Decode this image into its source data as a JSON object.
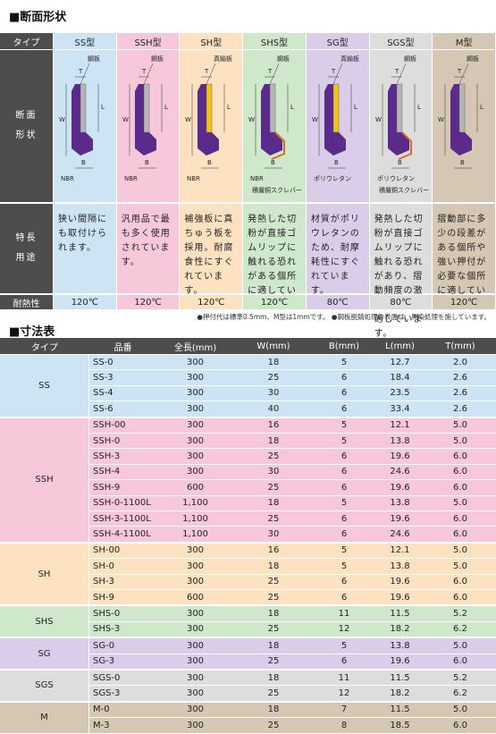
{
  "section_shape": {
    "title": "■断面形状",
    "row_labels": {
      "type": "タイプ",
      "shape": "断面形状",
      "use": "特長用途",
      "heat": "耐熱性"
    },
    "columns": [
      {
        "type": "SS型",
        "plate": "鋼板",
        "dims": [
          "T",
          "L",
          "W",
          "B"
        ],
        "bottom": [
          "NBR"
        ],
        "feature": "狭い間隔にも取付けられます。",
        "heat": "120℃"
      },
      {
        "type": "SSH型",
        "plate": "鋼板",
        "dims": [
          "T",
          "L",
          "W",
          "B"
        ],
        "bottom": [
          "NBR"
        ],
        "feature": "汎用品で最も多く使用されています。",
        "heat": "120℃"
      },
      {
        "type": "SH型",
        "plate": "真鍮板",
        "dims": [
          "T",
          "L",
          "W",
          "B"
        ],
        "bottom": [
          "NBR"
        ],
        "feature": "補強板に真ちゅう板を採用。耐腐食性にすぐれています。",
        "heat": "120℃"
      },
      {
        "type": "SHS型",
        "plate": "鋼板",
        "dims": [
          "T",
          "L",
          "W",
          "B"
        ],
        "bottom": [
          "NBR",
          "積層銅スクレバー"
        ],
        "feature": "発熱した切粉が直接ゴムリップに触れる恐れがある個所に適しています。",
        "heat": "120℃"
      },
      {
        "type": "SG型",
        "plate": "真鍮板",
        "dims": [
          "T",
          "L",
          "W",
          "B"
        ],
        "bottom": [
          "ポリウレタン"
        ],
        "feature": "材質がポリウレタンのため、耐摩耗性にすぐれています。",
        "heat": "80℃"
      },
      {
        "type": "SGS型",
        "plate": "鋼板",
        "dims": [
          "T",
          "L",
          "W",
          "B"
        ],
        "bottom": [
          "ポリウレタン",
          "積層銅スクレバー"
        ],
        "feature": "発熱した切粉が直接ゴムリップに触れる恐れがあり、摺動頻度の激しい個所に適しています。",
        "heat": "80℃"
      },
      {
        "type": "M型",
        "plate": "鋼板",
        "dims": [
          "T",
          "L",
          "W",
          "B"
        ],
        "bottom": [],
        "feature": "摺動部に多少の段差がある個所や強い押付が必要な個所に適しています。",
        "heat": "120℃"
      }
    ]
  },
  "note": "●押付代は標準0.5mm、M型は1mmです。 ●鋼板脱錆処理の表面は、黒染処理を施しています。",
  "section_size": {
    "title": "■寸法表",
    "headers": [
      "タイプ",
      "品番",
      "全長(mm)",
      "W(mm)",
      "B(mm)",
      "L(mm)",
      "T(mm)"
    ],
    "groups": [
      {
        "type": "SS",
        "rows": [
          [
            "SS-0",
            "300",
            "18",
            "5",
            "12.7",
            "2.0"
          ],
          [
            "SS-3",
            "300",
            "25",
            "6",
            "18.4",
            "2.6"
          ],
          [
            "SS-4",
            "300",
            "30",
            "6",
            "23.5",
            "2.6"
          ],
          [
            "SS-6",
            "300",
            "40",
            "6",
            "33.4",
            "2.6"
          ]
        ]
      },
      {
        "type": "SSH",
        "rows": [
          [
            "SSH-00",
            "300",
            "16",
            "5",
            "12.1",
            "5.0"
          ],
          [
            "SSH-0",
            "300",
            "18",
            "5",
            "13.8",
            "5.0"
          ],
          [
            "SSH-3",
            "300",
            "25",
            "6",
            "19.6",
            "6.0"
          ],
          [
            "SSH-4",
            "300",
            "30",
            "6",
            "24.6",
            "6.0"
          ],
          [
            "SSH-9",
            "600",
            "25",
            "6",
            "19.6",
            "6.0"
          ],
          [
            "SSH-0-1100L",
            "1,100",
            "18",
            "5",
            "13.8",
            "5.0"
          ],
          [
            "SSH-3-1100L",
            "1,100",
            "25",
            "6",
            "19.6",
            "6.0"
          ],
          [
            "SSH-4-1100L",
            "1,100",
            "30",
            "6",
            "24.6",
            "6.0"
          ]
        ]
      },
      {
        "type": "SH",
        "rows": [
          [
            "SH-00",
            "300",
            "16",
            "5",
            "12.1",
            "5.0"
          ],
          [
            "SH-0",
            "300",
            "18",
            "5",
            "13.8",
            "5.0"
          ],
          [
            "SH-3",
            "300",
            "25",
            "6",
            "19.6",
            "6.0"
          ],
          [
            "SH-9",
            "600",
            "25",
            "6",
            "19.6",
            "6.0"
          ]
        ]
      },
      {
        "type": "SHS",
        "rows": [
          [
            "SHS-0",
            "300",
            "18",
            "11",
            "11.5",
            "5.2"
          ],
          [
            "SHS-3",
            "300",
            "25",
            "12",
            "18.2",
            "6.2"
          ]
        ]
      },
      {
        "type": "SG",
        "rows": [
          [
            "SG-0",
            "300",
            "18",
            "5",
            "13.8",
            "5.0"
          ],
          [
            "SG-3",
            "300",
            "25",
            "6",
            "19.6",
            "6.0"
          ]
        ]
      },
      {
        "type": "SGS",
        "rows": [
          [
            "SGS-0",
            "300",
            "18",
            "11",
            "11.5",
            "5.2"
          ],
          [
            "SGS-3",
            "300",
            "25",
            "12",
            "18.2",
            "6.2"
          ]
        ]
      },
      {
        "type": "M",
        "rows": [
          [
            "M-0",
            "300",
            "18",
            "7",
            "11.5",
            "5.0"
          ],
          [
            "M-3",
            "300",
            "25",
            "8",
            "18.5",
            "6.0"
          ]
        ]
      }
    ]
  }
}
